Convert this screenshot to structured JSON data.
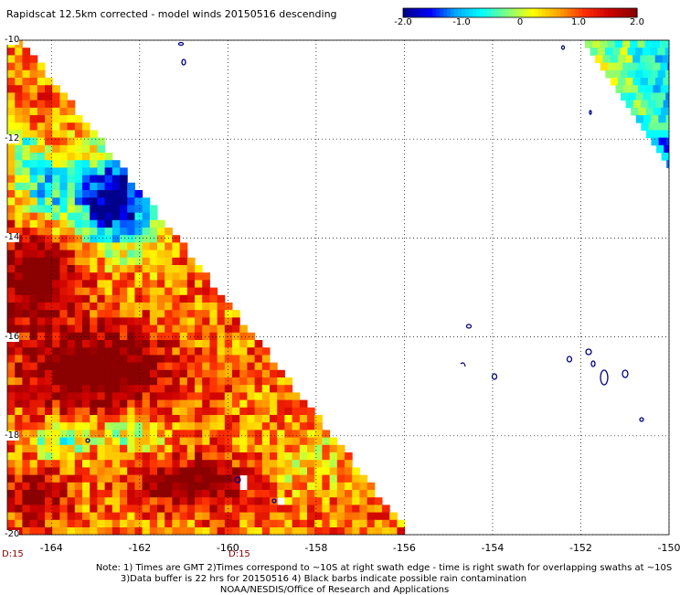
{
  "header": {
    "title": "Rapidscat 12.5km corrected - model winds 20150516 descending"
  },
  "colorbar": {
    "ticks": [
      "-2.0",
      "-1.0",
      "0",
      "1.0",
      "2.0"
    ],
    "range": [
      -2.0,
      2.0
    ],
    "colors": [
      "#00008b",
      "#0000ff",
      "#00aaff",
      "#00ffff",
      "#80ff80",
      "#ffff00",
      "#ffa500",
      "#ff3000",
      "#cc0000",
      "#8b0000"
    ]
  },
  "chart_data": {
    "type": "heatmap",
    "title": "Rapidscat 12.5km corrected - model winds 20150516 descending",
    "x_ticks": [
      "-164",
      "-162",
      "-160",
      "-158",
      "-156",
      "-154",
      "-152",
      "-150"
    ],
    "y_ticks": [
      "-10",
      "-12",
      "-14",
      "-16",
      "-18",
      "-20"
    ],
    "xlim": [
      -165,
      -150
    ],
    "ylim": [
      -20,
      -10
    ],
    "grid": "dotted",
    "value_range": [
      -2.0,
      2.0
    ],
    "time_labels": [
      "D:15",
      "D:15"
    ]
  },
  "notes": {
    "line1": "Note: 1) Times are GMT 2)Times correspond to ~10S at right swath edge - time is right swath for overlapping swaths at ~10S",
    "line2": "3)Data buffer is 22 hrs for 20150516 4) Black barbs indicate possible rain contamination",
    "line3": "NOAA/NESDIS/Office of Research and Applications"
  }
}
